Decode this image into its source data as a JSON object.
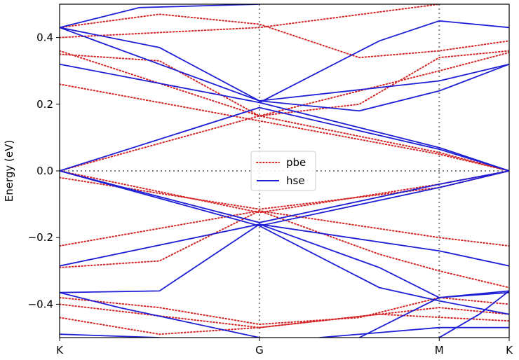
{
  "chart_data": {
    "type": "line",
    "title": "",
    "xlabel": "",
    "ylabel": "Energy (eV)",
    "ylim": [
      -0.5,
      0.5
    ],
    "x_ticks": [
      {
        "label": "K",
        "pos": 0.0
      },
      {
        "label": "G",
        "pos": 1.0
      },
      {
        "label": "M",
        "pos": 1.9
      },
      {
        "label": "K",
        "pos": 2.25
      }
    ],
    "y_ticks": [
      -0.4,
      -0.2,
      0.0,
      0.2,
      0.4
    ],
    "y_tick_labels": [
      "−0.4",
      "−0.2",
      "0.0",
      "0.2",
      "0.4"
    ],
    "legend": {
      "placement": "center",
      "entries": [
        {
          "name": "pbe",
          "color": "#d62728",
          "style": "dotted"
        },
        {
          "name": "hse",
          "color": "#1f1fd6",
          "style": "solid"
        }
      ]
    },
    "reference_lines": {
      "fermi": 0.0,
      "verticals": [
        1.0,
        1.9
      ]
    },
    "series": [
      {
        "name": "hse",
        "color": "#1f1fd6",
        "style": "solid",
        "bands": [
          [
            [
              0,
              0.43
            ],
            [
              1,
              0.21
            ],
            [
              1.9,
              0.27
            ],
            [
              2.25,
              0.32
            ]
          ],
          [
            [
              0,
              0.32
            ],
            [
              1,
              0.205
            ],
            [
              1.9,
              0.07
            ],
            [
              2.25,
              0.0
            ]
          ],
          [
            [
              0,
              0.0
            ],
            [
              1,
              0.19
            ],
            [
              1.9,
              0.065
            ],
            [
              2.25,
              0.0
            ]
          ],
          [
            [
              0,
              0.43
            ],
            [
              0.5,
              0.37
            ],
            [
              1,
              0.21
            ],
            [
              1.5,
              0.18
            ],
            [
              1.9,
              0.24
            ],
            [
              2.25,
              0.32
            ]
          ],
          [
            [
              0,
              0.43
            ],
            [
              0.4,
              0.49
            ],
            [
              1,
              0.5
            ]
          ],
          [
            [
              1,
              0.205
            ],
            [
              1.6,
              0.39
            ],
            [
              1.9,
              0.45
            ],
            [
              2.25,
              0.43
            ]
          ],
          [
            [
              0,
              0.0
            ],
            [
              1,
              -0.165
            ],
            [
              1.9,
              -0.05
            ],
            [
              2.25,
              0.0
            ]
          ],
          [
            [
              0,
              0.0
            ],
            [
              1,
              -0.155
            ],
            [
              1.9,
              -0.04
            ],
            [
              2.25,
              0.0
            ]
          ],
          [
            [
              0,
              -0.285
            ],
            [
              1,
              -0.16
            ],
            [
              1.9,
              -0.24
            ],
            [
              2.25,
              -0.285
            ]
          ],
          [
            [
              0,
              -0.365
            ],
            [
              0.5,
              -0.36
            ],
            [
              1,
              -0.16
            ],
            [
              1.6,
              -0.29
            ],
            [
              1.9,
              -0.38
            ],
            [
              2.25,
              -0.365
            ]
          ],
          [
            [
              0,
              -0.365
            ],
            [
              0.3,
              -0.41
            ],
            [
              1,
              -0.5
            ]
          ],
          [
            [
              1,
              -0.165
            ],
            [
              1.6,
              -0.35
            ],
            [
              1.9,
              -0.39
            ],
            [
              2.25,
              -0.43
            ]
          ],
          [
            [
              0,
              -0.49
            ],
            [
              0.5,
              -0.5
            ]
          ],
          [
            [
              1.5,
              -0.5
            ],
            [
              1.9,
              -0.38
            ],
            [
              2.25,
              -0.36
            ]
          ],
          [
            [
              1.3,
              -0.5
            ],
            [
              1.9,
              -0.47
            ],
            [
              2.25,
              -0.47
            ]
          ],
          [
            [
              1.9,
              -0.5
            ],
            [
              2.1,
              -0.43
            ],
            [
              2.25,
              -0.36
            ]
          ]
        ]
      },
      {
        "name": "pbe",
        "color": "#d62728",
        "style": "dotted",
        "bands": [
          [
            [
              0,
              0.36
            ],
            [
              1,
              0.165
            ],
            [
              1.9,
              0.3
            ],
            [
              2.25,
              0.355
            ]
          ],
          [
            [
              0,
              0.26
            ],
            [
              1,
              0.15
            ],
            [
              1.9,
              0.05
            ],
            [
              2.25,
              0.0
            ]
          ],
          [
            [
              0,
              0.0
            ],
            [
              1,
              0.165
            ],
            [
              1.9,
              0.055
            ],
            [
              2.25,
              0.0
            ]
          ],
          [
            [
              0,
              0.35
            ],
            [
              0.5,
              0.33
            ],
            [
              1,
              0.165
            ],
            [
              1.5,
              0.2
            ],
            [
              1.9,
              0.34
            ],
            [
              2.25,
              0.36
            ]
          ],
          [
            [
              0,
              0.43
            ],
            [
              0.5,
              0.47
            ],
            [
              1,
              0.44
            ],
            [
              1.5,
              0.34
            ],
            [
              1.9,
              0.36
            ],
            [
              2.25,
              0.39
            ]
          ],
          [
            [
              0,
              0.4
            ],
            [
              1,
              0.43
            ],
            [
              1.9,
              0.5
            ]
          ],
          [
            [
              0,
              0.0
            ],
            [
              1,
              -0.125
            ],
            [
              1.9,
              -0.04
            ],
            [
              2.25,
              0.0
            ]
          ],
          [
            [
              0,
              -0.02
            ],
            [
              1,
              -0.115
            ],
            [
              1.9,
              -0.05
            ],
            [
              2.25,
              0.0
            ]
          ],
          [
            [
              0,
              -0.225
            ],
            [
              1,
              -0.12
            ],
            [
              1.9,
              -0.2
            ],
            [
              2.25,
              -0.225
            ]
          ],
          [
            [
              0,
              -0.29
            ],
            [
              0.5,
              -0.27
            ],
            [
              1,
              -0.12
            ],
            [
              1.6,
              -0.25
            ],
            [
              1.9,
              -0.3
            ],
            [
              2.25,
              -0.35
            ]
          ],
          [
            [
              0,
              -0.38
            ],
            [
              0.5,
              -0.41
            ],
            [
              1,
              -0.46
            ],
            [
              1.5,
              -0.44
            ],
            [
              1.9,
              -0.38
            ],
            [
              2.25,
              -0.4
            ]
          ],
          [
            [
              0,
              -0.4
            ],
            [
              1,
              -0.47
            ],
            [
              1.9,
              -0.41
            ],
            [
              2.25,
              -0.43
            ]
          ],
          [
            [
              0,
              -0.44
            ],
            [
              0.5,
              -0.49
            ],
            [
              1,
              -0.47
            ]
          ],
          [
            [
              1,
              -0.47
            ],
            [
              1.6,
              -0.43
            ],
            [
              2.25,
              -0.45
            ]
          ]
        ]
      }
    ]
  }
}
